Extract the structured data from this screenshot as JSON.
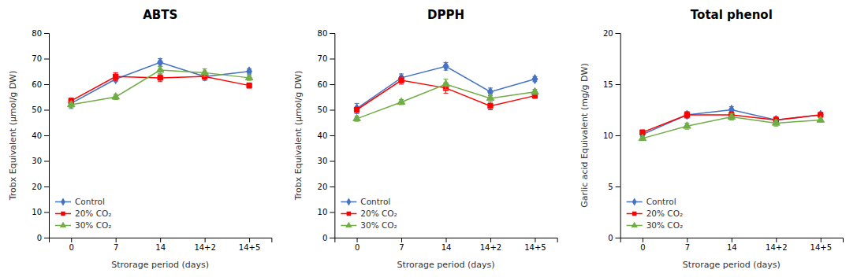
{
  "chart_data": [
    {
      "type": "line",
      "title": "ABTS",
      "x_label": "Strorage period (days)",
      "y_label": "Trobx Equivalent (μmol/g DW)",
      "categories": [
        "0",
        "7",
        "14",
        "14+2",
        "14+5"
      ],
      "series": [
        {
          "name": "Control",
          "color": "#4472C4",
          "marker": "diamond",
          "values": [
            52.5,
            62.0,
            68.5,
            63.0,
            65.0
          ],
          "errors": [
            2.0,
            1.0,
            1.5,
            1.5,
            1.0
          ]
        },
        {
          "name": "20% CO₂",
          "color": "#FF0000",
          "marker": "square",
          "values": [
            53.5,
            63.0,
            62.5,
            63.0,
            59.5
          ],
          "errors": [
            1.0,
            1.5,
            1.5,
            1.0,
            1.0
          ]
        },
        {
          "name": "30% CO₂",
          "color": "#70AD47",
          "marker": "triangle",
          "values": [
            52.0,
            55.0,
            65.5,
            64.5,
            62.5
          ],
          "errors": [
            1.0,
            1.0,
            1.5,
            1.5,
            1.0
          ]
        }
      ],
      "ylim": [
        0,
        80
      ],
      "yticks": [
        0,
        10,
        20,
        30,
        40,
        50,
        60,
        70,
        80
      ],
      "grid": false,
      "legend": "lower left"
    },
    {
      "type": "line",
      "title": "DPPH",
      "x_label": "Strorage period (days)",
      "y_label": "Trobx Equivalent (μmol/g DW)",
      "categories": [
        "0",
        "7",
        "14",
        "14+2",
        "14+5"
      ],
      "series": [
        {
          "name": "Control",
          "color": "#4472C4",
          "marker": "diamond",
          "values": [
            50.5,
            62.5,
            67.0,
            57.0,
            62.0
          ],
          "errors": [
            2.0,
            1.5,
            1.5,
            1.5,
            1.0
          ]
        },
        {
          "name": "20% CO₂",
          "color": "#FF0000",
          "marker": "square",
          "values": [
            50.0,
            61.5,
            58.5,
            51.5,
            55.5
          ],
          "errors": [
            1.0,
            1.5,
            2.0,
            1.5,
            1.0
          ]
        },
        {
          "name": "30% CO₂",
          "color": "#70AD47",
          "marker": "triangle",
          "values": [
            46.5,
            53.0,
            60.0,
            54.5,
            57.0
          ],
          "errors": [
            1.0,
            1.0,
            2.0,
            1.5,
            1.0
          ]
        }
      ],
      "ylim": [
        0,
        80
      ],
      "yticks": [
        0,
        10,
        20,
        30,
        40,
        50,
        60,
        70,
        80
      ],
      "grid": false,
      "legend": "lower left"
    },
    {
      "type": "line",
      "title": "Total phenol",
      "x_label": "Strorage period (days)",
      "y_label": "Garlic acid Equivalent (mg/g DW)",
      "categories": [
        "0",
        "7",
        "14",
        "14+2",
        "14+5"
      ],
      "series": [
        {
          "name": "Control",
          "color": "#4472C4",
          "marker": "diamond",
          "values": [
            10.1,
            12.0,
            12.5,
            11.5,
            12.0
          ],
          "errors": [
            0.2,
            0.3,
            0.3,
            0.3,
            0.2
          ]
        },
        {
          "name": "20% CO₂",
          "color": "#FF0000",
          "marker": "square",
          "values": [
            10.3,
            12.0,
            12.0,
            11.5,
            12.0
          ],
          "errors": [
            0.2,
            0.3,
            0.3,
            0.3,
            0.2
          ]
        },
        {
          "name": "30% CO₂",
          "color": "#70AD47",
          "marker": "triangle",
          "values": [
            9.7,
            10.9,
            11.8,
            11.2,
            11.5
          ],
          "errors": [
            0.2,
            0.3,
            0.3,
            0.3,
            0.2
          ]
        }
      ],
      "ylim": [
        0,
        20
      ],
      "yticks": [
        0,
        5,
        10,
        15,
        20
      ],
      "grid": false,
      "legend": "lower left"
    }
  ]
}
